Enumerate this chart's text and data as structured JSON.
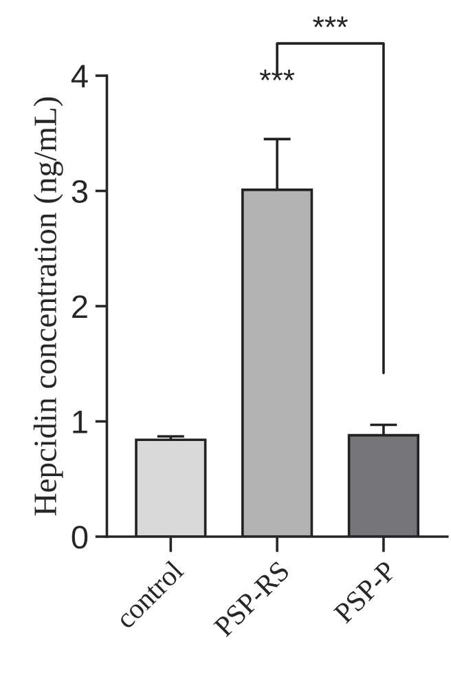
{
  "chart_data": {
    "type": "bar",
    "ylabel": "Hepcidin concentration (ng/mL)",
    "categories": [
      "control",
      "PSP-RS",
      "PSP-P"
    ],
    "values": [
      0.84,
      3.01,
      0.88
    ],
    "errors": [
      [
        0.84,
        0.87
      ],
      [
        3.01,
        3.45
      ],
      [
        0.88,
        0.97
      ]
    ],
    "colors": [
      "#d9d9d9",
      "#b3b3b3",
      "#76767a"
    ],
    "ylim": [
      0,
      4
    ],
    "yticks": [
      0,
      1,
      2,
      3,
      4
    ],
    "grid": false,
    "annotations": [
      "***",
      "***"
    ]
  }
}
